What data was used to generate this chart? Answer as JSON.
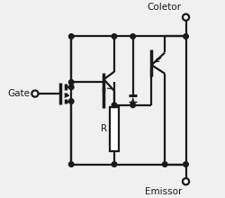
{
  "bg_color": "#f0f0f0",
  "line_color": "#1a1a1a",
  "text_color": "#1a1a1a",
  "gate_label": "Gate",
  "collector_label": "Coletor",
  "emitter_label": "Emissor",
  "r_label": "R",
  "fig_width": 2.5,
  "fig_height": 2.2,
  "dpi": 100
}
